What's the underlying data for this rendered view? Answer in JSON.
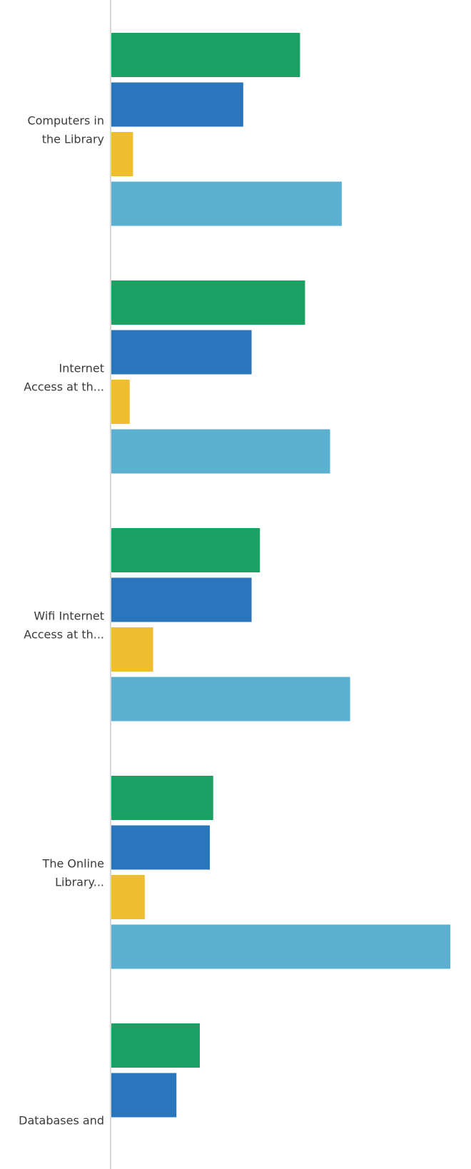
{
  "chart_data": {
    "type": "bar",
    "orientation": "horizontal",
    "categories": [
      [
        "Computers in",
        "the Library"
      ],
      [
        "Internet",
        "Access at th..."
      ],
      [
        "Wifi Internet",
        "Access at th..."
      ],
      [
        "The Online",
        "Library..."
      ],
      [
        "Databases and"
      ]
    ],
    "series": [
      {
        "color": "#1aa163",
        "values": [
          56.5,
          58,
          44.5,
          30.5,
          26.5
        ]
      },
      {
        "color": "#2a76bd",
        "values": [
          39.5,
          42,
          42,
          29.5,
          19.5
        ]
      },
      {
        "color": "#efbd30",
        "values": [
          6.5,
          5.5,
          12.5,
          10,
          null
        ]
      },
      {
        "color": "#5bb0d0",
        "values": [
          69,
          65.5,
          71.5,
          101.5,
          null
        ]
      }
    ],
    "xlim": [
      0,
      101.5
    ],
    "grid": false,
    "legend": "none"
  }
}
